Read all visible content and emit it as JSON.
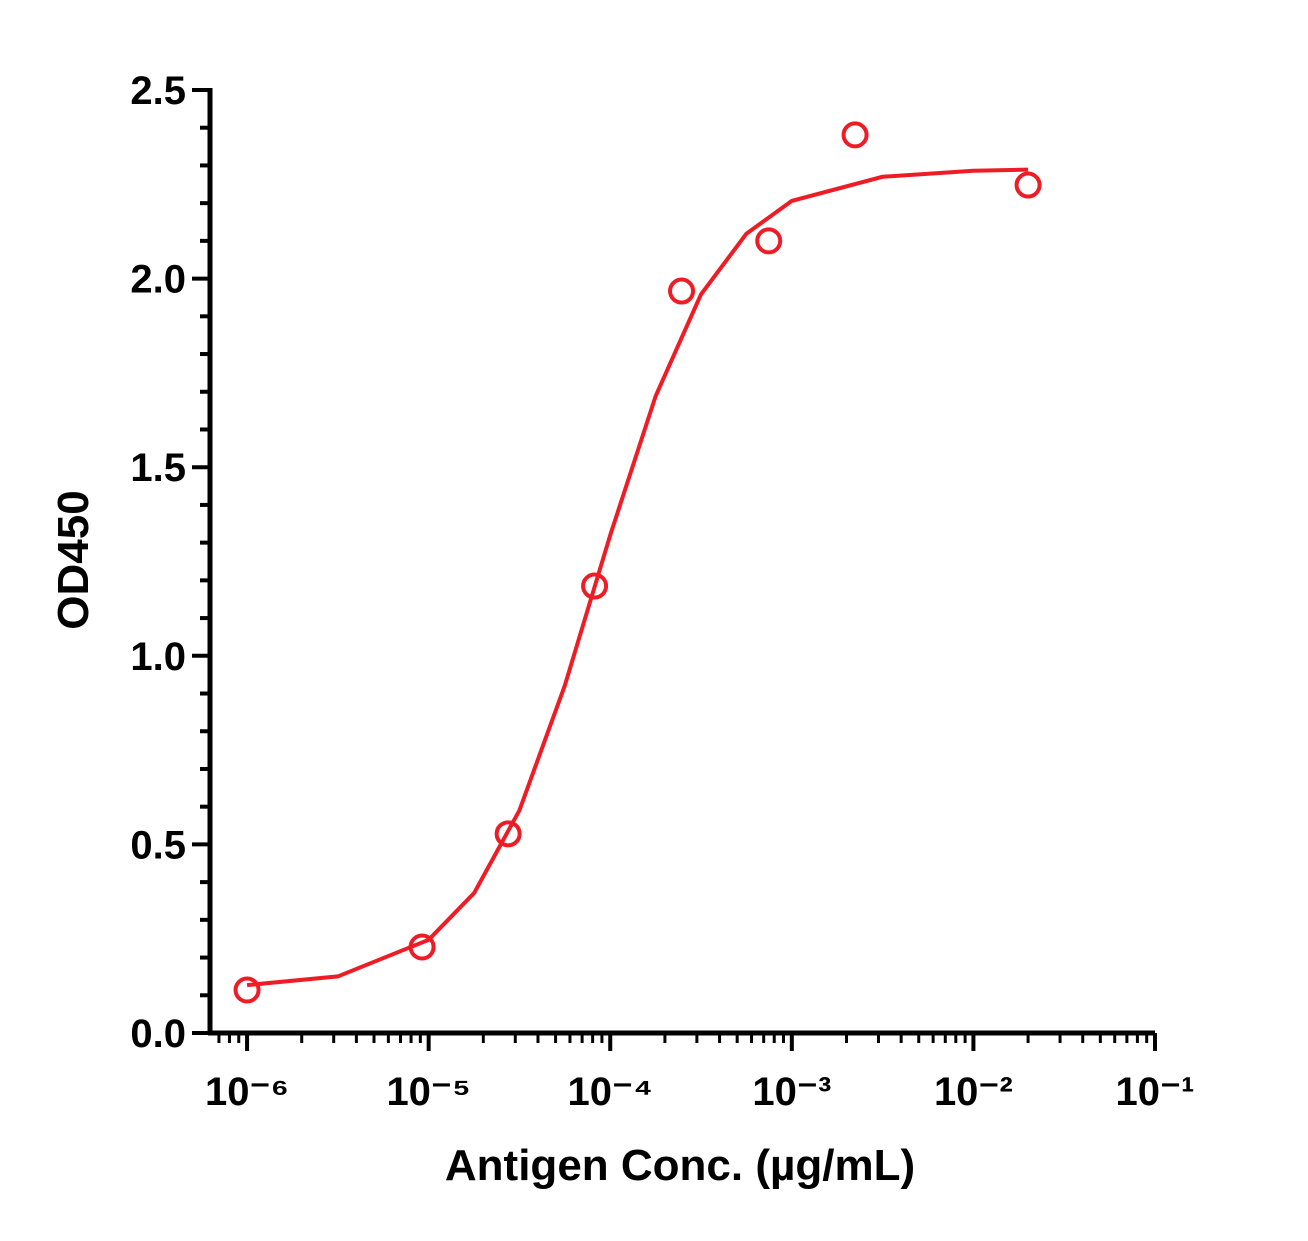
{
  "chart_data": {
    "type": "scatter",
    "x_label": "Antigen Conc. (µg/mL)",
    "y_label": "OD450",
    "x_scale": "log",
    "xlim": [
      6.25e-07,
      0.1
    ],
    "ylim": [
      0,
      2.5
    ],
    "xticks": [
      {
        "value": 1e-06,
        "label": "10⁻⁶"
      },
      {
        "value": 1e-05,
        "label": "10⁻⁵"
      },
      {
        "value": 0.0001,
        "label": "10⁻⁴"
      },
      {
        "value": 0.001,
        "label": "10⁻³"
      },
      {
        "value": 0.01,
        "label": "10⁻²"
      },
      {
        "value": 0.1,
        "label": "10⁻¹"
      }
    ],
    "yticks": [
      {
        "value": 0,
        "label": "0.0"
      },
      0.5,
      {
        "value": 1,
        "label": "1.0"
      },
      1.5,
      {
        "value": 2,
        "label": "2.0"
      },
      2.5
    ],
    "xminorticks": [
      7e-07,
      8e-07,
      9e-07,
      2e-06,
      3e-06,
      4e-06,
      5e-06,
      6e-06,
      7e-06,
      8e-06,
      9e-06,
      2e-05,
      3e-05,
      4e-05,
      5e-05,
      6e-05,
      7e-05,
      8e-05,
      9e-05,
      0.0002,
      0.0003,
      0.0004,
      0.0005,
      0.0006,
      0.0007,
      0.0008,
      0.0009,
      0.002,
      0.003,
      0.004,
      0.005,
      0.006,
      0.007,
      0.008,
      0.009,
      0.02,
      0.03,
      0.04,
      0.05,
      0.06,
      0.07,
      0.08,
      0.09
    ],
    "yminorticks": [
      0.1,
      0.2,
      0.3,
      0.4,
      0.6,
      0.7,
      0.8,
      0.9,
      1.1,
      1.2,
      1.3,
      1.4,
      1.6,
      1.7,
      1.8,
      1.9,
      2.1,
      2.2,
      2.3,
      2.4
    ],
    "grid": false,
    "series": [
      {
        "kind": "points",
        "color": "#ee1c25",
        "x": [
          1e-06,
          9.2e-06,
          2.74e-05,
          8.2e-05,
          0.000247,
          0.000746,
          0.00223,
          0.02
        ],
        "values": [
          0.114,
          0.228,
          0.528,
          1.185,
          1.967,
          2.1,
          2.381,
          2.248
        ]
      },
      {
        "kind": "line",
        "color": "#ee1c25",
        "x": [
          1e-06,
          3.16e-06,
          1e-05,
          1.78e-05,
          3.16e-05,
          5.62e-05,
          0.0001,
          0.000178,
          0.000316,
          0.000562,
          0.001,
          0.00316,
          0.01,
          0.02
        ],
        "values": [
          0.127,
          0.15,
          0.247,
          0.371,
          0.59,
          0.921,
          1.32,
          1.689,
          1.958,
          2.119,
          2.206,
          2.27,
          2.286,
          2.289
        ]
      }
    ]
  }
}
